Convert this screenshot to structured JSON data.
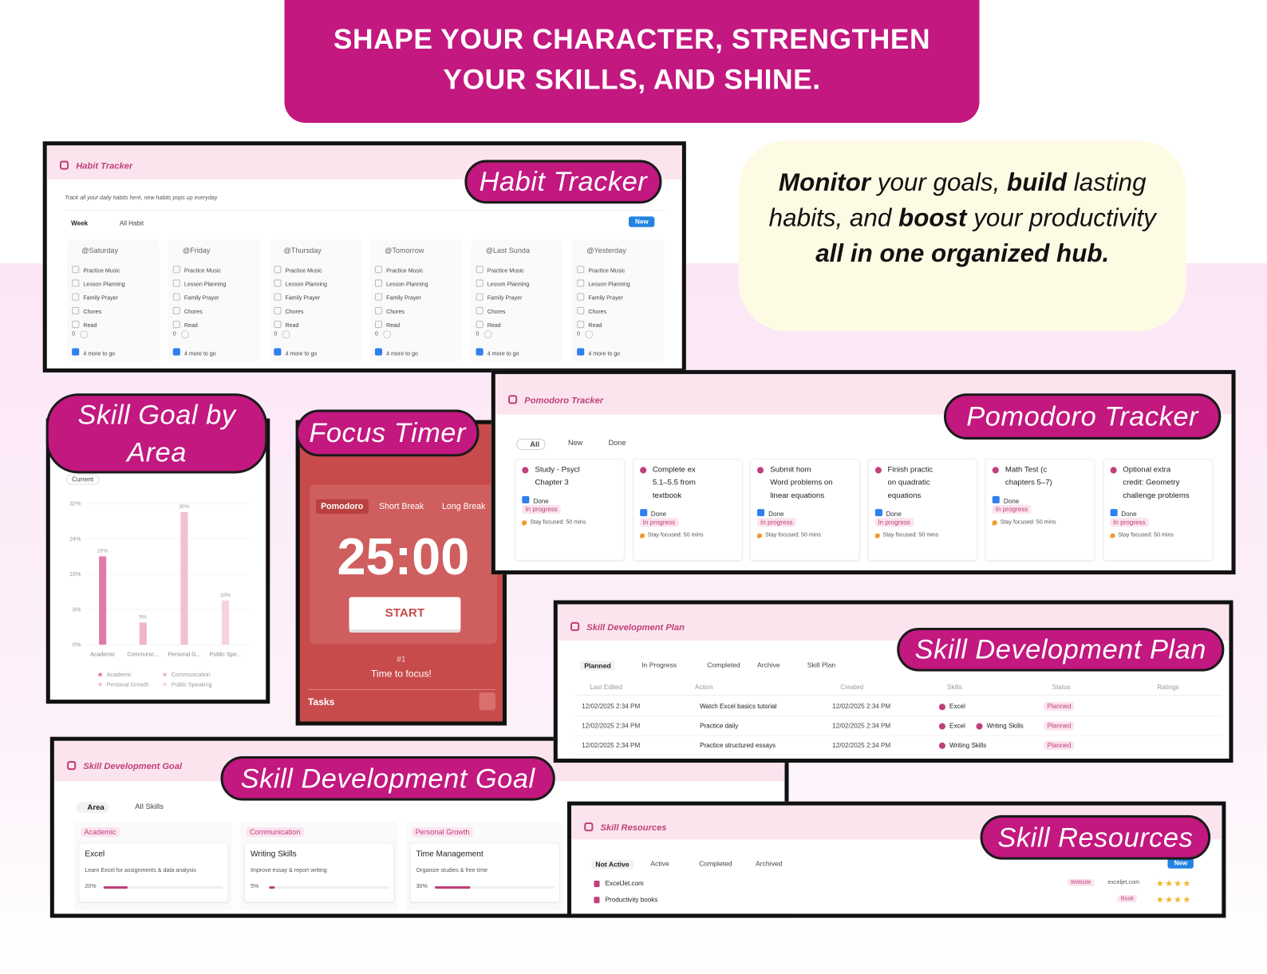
{
  "banner": {
    "line1": "SHAPE YOUR CHARACTER, STRENGTHEN",
    "line2": "YOUR SKILLS, AND SHINE."
  },
  "tagline": {
    "segments": [
      {
        "text": "Monitor",
        "bold": true
      },
      {
        "text": " your goals, ",
        "bold": false
      },
      {
        "text": "build",
        "bold": true
      },
      {
        "text": " lasting habits, and ",
        "bold": false
      },
      {
        "text": "boost",
        "bold": true
      },
      {
        "text": " your productivity ",
        "bold": false
      },
      {
        "text": "all in one organized hub.",
        "bold": true
      }
    ]
  },
  "habit_tracker": {
    "label": "Habit Tracker",
    "page_title": "Habit Tracker",
    "description": "Track all your daily habits here, new habits pops up everyday",
    "views": [
      "Week",
      "All Habit"
    ],
    "new_button": "New",
    "columns": [
      {
        "title": "@Saturday",
        "items": [
          "Practice Music",
          "Lesson Planning",
          "Family Prayer",
          "Chores",
          "Read"
        ],
        "count": 0,
        "more": "4 more to go"
      },
      {
        "title": "@Friday",
        "items": [
          "Practice Music",
          "Lesson Planning",
          "Family Prayer",
          "Chores",
          "Read"
        ],
        "count": 0,
        "more": "4 more to go"
      },
      {
        "title": "@Thursday",
        "items": [
          "Practice Music",
          "Lesson Planning",
          "Family Prayer",
          "Chores",
          "Read"
        ],
        "count": 0,
        "more": "4 more to go"
      },
      {
        "title": "@Tomorrow",
        "items": [
          "Practice Music",
          "Lesson Planning",
          "Family Prayer",
          "Chores",
          "Read"
        ],
        "count": 0,
        "more": "4 more to go"
      },
      {
        "title": "@Last Sunda",
        "items": [
          "Practice Music",
          "Lesson Planning",
          "Family Prayer",
          "Chores",
          "Read"
        ],
        "count": 0,
        "more": "4 more to go"
      },
      {
        "title": "@Yesterday",
        "items": [
          "Practice Music",
          "Lesson Planning",
          "Family Prayer",
          "Chores",
          "Read"
        ],
        "count": 0,
        "more": "4 more to go"
      }
    ]
  },
  "pomodoro_tracker": {
    "label": "Pomodoro Tracker",
    "page_title": "Pomodoro Tracker",
    "filters": [
      "All",
      "New",
      "Done"
    ],
    "cards": [
      {
        "title": [
          "Study - Psycl",
          "Chapter 3"
        ],
        "check": "Done",
        "status": "In progress",
        "focus": "Stay focused: 50 mins"
      },
      {
        "title": [
          "Complete ex",
          "5.1–5.5 from",
          "textbook"
        ],
        "check": "Done",
        "status": "In progress",
        "focus": "Stay focused: 50 mins"
      },
      {
        "title": [
          "Submit hom",
          "Word problems on",
          "linear equations"
        ],
        "check": "Done",
        "status": "In progress",
        "focus": "Stay focused: 50 mins"
      },
      {
        "title": [
          "Finish practic",
          "on quadratic",
          "equations"
        ],
        "check": "Done",
        "status": "In progress",
        "focus": "Stay focused: 50 mins"
      },
      {
        "title": [
          "Math Test (c",
          "chapters 5–7)"
        ],
        "check": "Done",
        "status": "In progress",
        "focus": "Stay focused: 50 mins"
      },
      {
        "title": [
          "Optional extra",
          "credit: Geometry",
          "challenge problems"
        ],
        "check": "Done",
        "status": "In progress",
        "focus": "Stay focused: 50 mins"
      }
    ]
  },
  "skill_goal_by_area": {
    "label": "Skill Goal by Area",
    "view": "Current",
    "chart": {
      "type": "bar",
      "categories": [
        "Academic",
        "Communic...",
        "Personal G...",
        "Public Spe..."
      ],
      "values": [
        20,
        5,
        30,
        10
      ],
      "value_labels": [
        "20%",
        "5%",
        "30%",
        "10%"
      ],
      "colors": [
        "#e07ba9",
        "#efb3cc",
        "#f3bfd5",
        "#f7d2e1"
      ],
      "ylim": [
        0,
        32
      ],
      "yticks": [
        {
          "value": 0,
          "label": "0%"
        },
        {
          "value": 8,
          "label": "8%"
        },
        {
          "value": 16,
          "label": "16%"
        },
        {
          "value": 24,
          "label": "24%"
        },
        {
          "value": 32,
          "label": "32%"
        }
      ],
      "legend": [
        "Academic",
        "Communication",
        "Personal Growth",
        "Public Speaking"
      ]
    }
  },
  "focus_timer": {
    "label": "Focus Timer",
    "tabs": [
      "Pomodoro",
      "Short Break",
      "Long Break"
    ],
    "time": "25:00",
    "button": "START",
    "session": "#1",
    "message": "Time to focus!",
    "tasks": "Tasks"
  },
  "skill_development_plan": {
    "label": "Skill Development Plan",
    "page_title": "Skill Development Plan",
    "tabs": [
      "Planned",
      "In Progress",
      "Completed",
      "Archive",
      "Skill Plan"
    ],
    "columns": [
      "Last Edited",
      "Action",
      "Created",
      "Skills",
      "Status",
      "Ratings"
    ],
    "rows": [
      {
        "last_edited": "12/02/2025 2:34 PM",
        "action": "Watch Excel basics tutorial",
        "created": "12/02/2025 2:34 PM",
        "skills": [
          "Excel"
        ],
        "status": "Planned"
      },
      {
        "last_edited": "12/02/2025 2:34 PM",
        "action": "Practice daily",
        "created": "12/02/2025 2:34 PM",
        "skills": [
          "Excel",
          "Writing Skills"
        ],
        "status": "Planned"
      },
      {
        "last_edited": "12/02/2025 2:34 PM",
        "action": "Practice structured essays",
        "created": "12/02/2025 2:34 PM",
        "skills": [
          "Writing Skills"
        ],
        "status": "Planned"
      }
    ]
  },
  "skill_development_goal": {
    "label": "Skill Development Goal",
    "page_title": "Skill Development Goal",
    "views": [
      "Area",
      "All Skills"
    ],
    "groups": [
      {
        "name": "Academic",
        "card": "Excel",
        "description": "Learn Excel for assignments & data analysis",
        "progress": 20,
        "progress_label": "20%"
      },
      {
        "name": "Communication",
        "card": "Writing Skills",
        "description": "Improve essay & report writing",
        "progress": 5,
        "progress_label": "5%"
      },
      {
        "name": "Personal Growth",
        "card": "Time Management",
        "description": "Organize studies & free time",
        "progress": 30,
        "progress_label": "30%"
      }
    ]
  },
  "skill_resources": {
    "label": "Skill Resources",
    "page_title": "Skill Resources",
    "tabs": [
      "Not Active",
      "Active",
      "Completed",
      "Archived"
    ],
    "new_button": "New",
    "rows": [
      {
        "name": "ExcelJet.com",
        "type": "Website",
        "url": "exceljet.com",
        "rating": 4
      },
      {
        "name": "Productivity books",
        "type": "Book",
        "rating": 4
      }
    ]
  }
}
